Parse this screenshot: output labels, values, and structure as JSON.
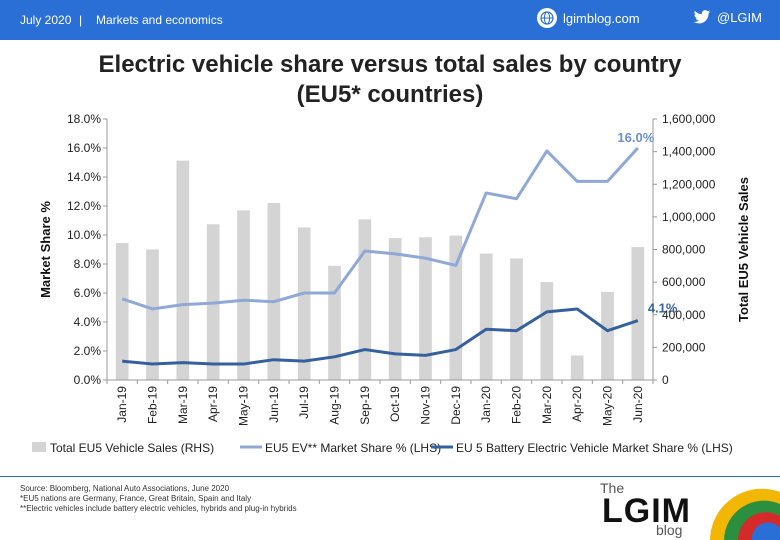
{
  "header": {
    "date": "July 2020",
    "separator": "|",
    "section": "Markets and economics",
    "site_icon": "globe-icon",
    "site": "lgimblog.com",
    "twitter_icon": "twitter-bird-icon",
    "twitter": "@LGIM"
  },
  "title": {
    "line1": "Electric vehicle share versus total sales by country",
    "line2": "(EU5* countries)"
  },
  "chart_data": {
    "type": "bar+line",
    "categories": [
      "Jan-19",
      "Feb-19",
      "Mar-19",
      "Apr-19",
      "May-19",
      "Jun-19",
      "Jul-19",
      "Aug-19",
      "Sep-19",
      "Oct-19",
      "Nov-19",
      "Dec-19",
      "Jan-20",
      "Feb-20",
      "Mar-20",
      "Apr-20",
      "May-20",
      "Jun-20"
    ],
    "ylabel_left": "Market Share %",
    "ylabel_right": "Total EU5 Vehicle Sales",
    "ylim_left": [
      0,
      18
    ],
    "ylim_right": [
      0,
      1600000
    ],
    "left_ticks": [
      "0.0%",
      "2.0%",
      "4.0%",
      "6.0%",
      "8.0%",
      "10.0%",
      "12.0%",
      "14.0%",
      "16.0%",
      "18.0%"
    ],
    "right_ticks": [
      "0",
      "200,000",
      "400,000",
      "600,000",
      "800,000",
      "1,000,000",
      "1,200,000",
      "1,400,000",
      "1,600,000"
    ],
    "series": [
      {
        "name": "Total EU5 Vehicle Sales (RHS)",
        "type": "bar",
        "axis": "right",
        "color": "#d4d4d4",
        "values": [
          840000,
          800000,
          1345000,
          955000,
          1040000,
          1085000,
          935000,
          700000,
          985000,
          870000,
          875000,
          885000,
          775000,
          745000,
          600000,
          150000,
          540000,
          815000
        ]
      },
      {
        "name": "EU5 EV** Market Share % (LHS)",
        "type": "line",
        "axis": "left",
        "color": "#8fa8d6",
        "values": [
          5.6,
          4.9,
          5.2,
          5.3,
          5.5,
          5.4,
          6.0,
          6.0,
          8.9,
          8.7,
          8.4,
          7.9,
          12.9,
          12.5,
          15.8,
          13.7,
          13.7,
          16.0
        ]
      },
      {
        "name": "EU 5 Battery Electric Vehicle Market Share % (LHS)",
        "type": "line",
        "axis": "left",
        "color": "#35609e",
        "values": [
          1.3,
          1.1,
          1.2,
          1.1,
          1.1,
          1.4,
          1.3,
          1.6,
          2.1,
          1.8,
          1.7,
          2.1,
          3.5,
          3.4,
          4.7,
          4.9,
          3.4,
          4.1
        ]
      }
    ],
    "annotations": [
      "16.0%",
      "4.1%"
    ],
    "legend_position": "bottom"
  },
  "footer": {
    "notes": [
      "Source: Bloomberg, National Auto Associations, June 2020",
      "*EU5 nations are Germany, France, Great Britain, Spain and Italy",
      "**Electric vehicles include battery electric vehicles, hybrids and plug-in hybrids"
    ],
    "brand_the": "The",
    "brand_name": "LGIM",
    "brand_blog": "blog"
  }
}
